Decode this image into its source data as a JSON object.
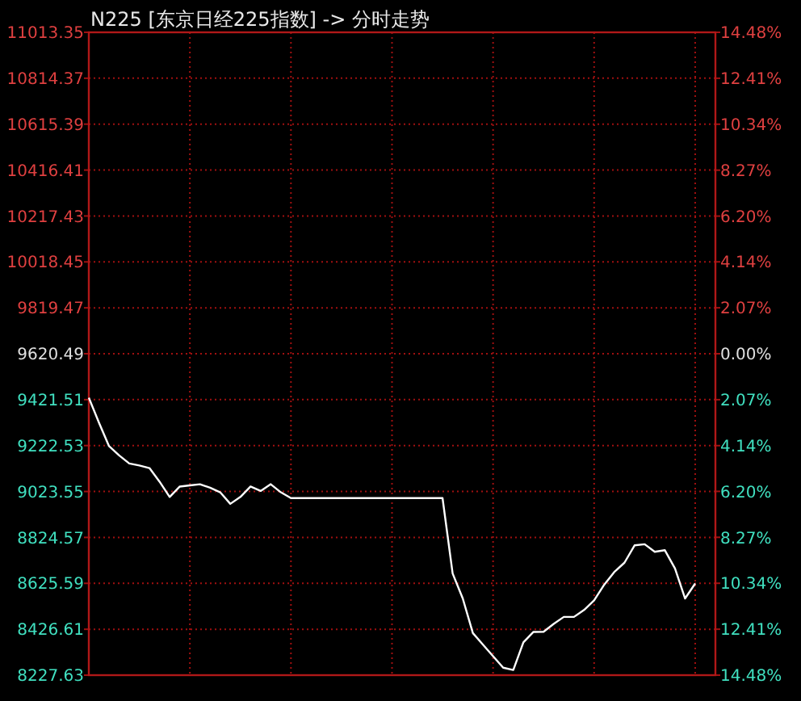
{
  "chart_data": {
    "type": "line",
    "title": "N225 [东京日经225指数] -> 分时走势",
    "categories": [
      null,
      null,
      null,
      null,
      null,
      null,
      null,
      null,
      null,
      null,
      null,
      null,
      null,
      null,
      null,
      null,
      null,
      null,
      null,
      null,
      null,
      null,
      null,
      null,
      null,
      null,
      null,
      null,
      null,
      null,
      null,
      null,
      null,
      null,
      null,
      null,
      null,
      null,
      null,
      null,
      null,
      null,
      null,
      null,
      null,
      null,
      null,
      null,
      null,
      null,
      null,
      null,
      null,
      null,
      null,
      null,
      null,
      null,
      null,
      null,
      null,
      null,
      null
    ],
    "ylim": [
      8227.63,
      11013.35
    ],
    "yticks": [
      11013.35,
      10814.37,
      10615.39,
      10416.41,
      10217.43,
      10018.45,
      9819.47,
      9620.49,
      9421.51,
      9222.53,
      9023.55,
      8824.57,
      8625.59,
      8426.61,
      8227.63
    ],
    "y2lim": [
      -14.48,
      14.48
    ],
    "y2ticks": [
      {
        "value": 14.48,
        "label": "14.48%"
      },
      {
        "value": 12.41,
        "label": "12.41%"
      },
      {
        "value": 10.34,
        "label": "10.34%"
      },
      {
        "value": 8.27,
        "label": "8.27%"
      },
      {
        "value": 6.2,
        "label": "6.20%"
      },
      {
        "value": 4.14,
        "label": "4.14%"
      },
      {
        "value": 2.07,
        "label": "2.07%"
      },
      {
        "value": 0,
        "label": "0.00%"
      },
      {
        "value": -2.07,
        "label": "2.07%"
      },
      {
        "value": -4.14,
        "label": "4.14%"
      },
      {
        "value": -6.2,
        "label": "6.20%"
      },
      {
        "value": -8.27,
        "label": "8.27%"
      },
      {
        "value": -10.34,
        "label": "10.34%"
      },
      {
        "value": -12.41,
        "label": "12.41%"
      },
      {
        "value": -14.48,
        "label": "14.48%"
      }
    ],
    "grid": true,
    "series": [
      {
        "color": "#ffffff",
        "values": [
          9430,
          9322,
          9220,
          9180,
          9145,
          9136,
          9125,
          9066,
          9000,
          9045,
          9050,
          9055,
          9040,
          9020,
          8970,
          9000,
          9045,
          9026,
          9055,
          9020,
          8995,
          8995,
          8995,
          8995,
          8995,
          8995,
          8995,
          8995,
          8995,
          8995,
          8995,
          8995,
          8995,
          8995,
          8995,
          8995,
          8668,
          8560,
          8410,
          8360,
          8310,
          8260,
          8250,
          8370,
          8415,
          8416,
          8450,
          8480,
          8480,
          8510,
          8552,
          8620,
          8675,
          8715,
          8790,
          8795,
          8762,
          8769,
          8690,
          8560,
          8625,
          null,
          null
        ]
      }
    ]
  }
}
